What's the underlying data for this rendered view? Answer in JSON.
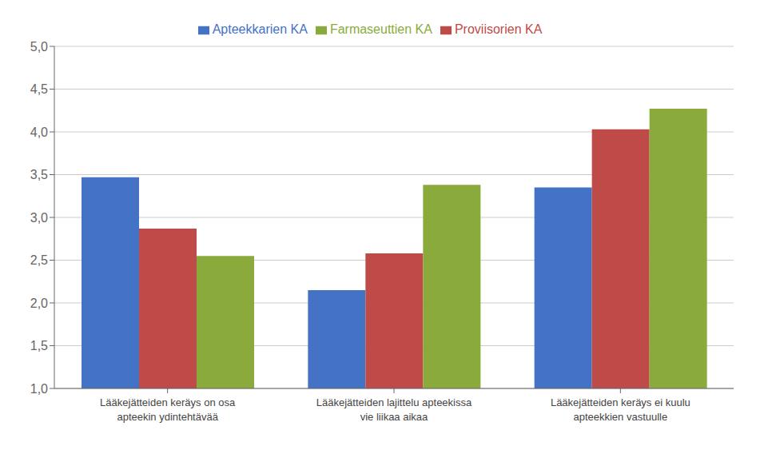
{
  "chart_data": {
    "type": "bar",
    "categories": [
      "Lääkejätteiden keräys on osa\napteekin ydintehtävää",
      "Lääkejätteiden lajittelu apteekissa\nvie liikaa aikaa",
      "Lääkejätteiden keräys ei kuulu\napteekkien vastuulle"
    ],
    "series": [
      {
        "name": "Apteekkarien KA",
        "color": "#4472C4",
        "values": [
          3.47,
          2.15,
          3.35
        ]
      },
      {
        "name": "Proviisorien KA",
        "color": "#BE4B48",
        "values": [
          2.87,
          2.58,
          4.03
        ]
      },
      {
        "name": "Farmaseuttien KA",
        "color": "#8AAB3C",
        "values": [
          2.55,
          3.38,
          4.27
        ]
      }
    ],
    "ylim": [
      1.0,
      5.0
    ],
    "yticks": [
      {
        "value": 1.0,
        "label": "1,0"
      },
      {
        "value": 1.5,
        "label": "1,5"
      },
      {
        "value": 2.0,
        "label": "2,0"
      },
      {
        "value": 2.5,
        "label": "2,5"
      },
      {
        "value": 3.0,
        "label": "3,0"
      },
      {
        "value": 3.5,
        "label": "3,5"
      },
      {
        "value": 4.0,
        "label": "4,0"
      },
      {
        "value": 4.5,
        "label": "4,5"
      },
      {
        "value": 5.0,
        "label": "5,0"
      }
    ],
    "grid": true,
    "legend": "top"
  }
}
